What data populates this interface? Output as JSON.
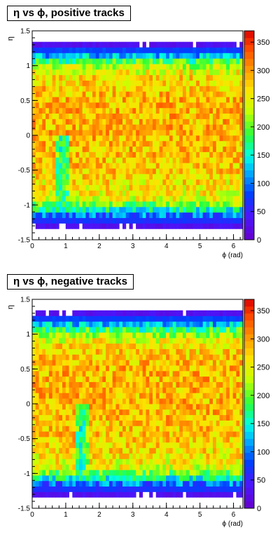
{
  "chart_data": [
    {
      "type": "heatmap",
      "title": "η vs ϕ, positive tracks",
      "xlabel": "ϕ (rad)",
      "ylabel": "η",
      "xlim": [
        0,
        6.28
      ],
      "ylim": [
        -1.5,
        1.5
      ],
      "x_ticks": [
        0,
        1,
        2,
        3,
        4,
        5,
        6
      ],
      "y_ticks": [
        -1.5,
        -1,
        -0.5,
        0,
        0.5,
        1,
        1.5
      ],
      "z_range": [
        0,
        370
      ],
      "colorbar_ticks": [
        0,
        50,
        100,
        150,
        200,
        250,
        300,
        350
      ],
      "eta_profile": [
        [
          -1.3,
          30
        ],
        [
          -1.22,
          70
        ],
        [
          -1.14,
          100
        ],
        [
          -1.06,
          160
        ],
        [
          -0.98,
          210
        ],
        [
          -0.9,
          250
        ],
        [
          -0.5,
          275
        ],
        [
          0.0,
          285
        ],
        [
          0.5,
          285
        ],
        [
          0.86,
          265
        ],
        [
          0.94,
          240
        ],
        [
          1.02,
          210
        ],
        [
          1.1,
          160
        ],
        [
          1.18,
          100
        ],
        [
          1.26,
          60
        ],
        [
          1.3,
          30
        ]
      ],
      "dead_region": {
        "phi": [
          0.7,
          1.1
        ],
        "eta": [
          -1.0,
          0.0
        ],
        "value": 160
      },
      "fiducial_eta": [
        -1.34,
        1.34
      ]
    },
    {
      "type": "heatmap",
      "title": "η vs ϕ, negative tracks",
      "xlabel": "ϕ (rad)",
      "ylabel": "η",
      "xlim": [
        0,
        6.28
      ],
      "ylim": [
        -1.5,
        1.5
      ],
      "x_ticks": [
        0,
        1,
        2,
        3,
        4,
        5,
        6
      ],
      "y_ticks": [
        -1.5,
        -1,
        -0.5,
        0,
        0.5,
        1,
        1.5
      ],
      "z_range": [
        0,
        370
      ],
      "colorbar_ticks": [
        0,
        50,
        100,
        150,
        200,
        250,
        300,
        350
      ],
      "eta_profile": [
        [
          -1.3,
          30
        ],
        [
          -1.22,
          70
        ],
        [
          -1.14,
          100
        ],
        [
          -1.06,
          160
        ],
        [
          -0.98,
          210
        ],
        [
          -0.9,
          250
        ],
        [
          -0.5,
          275
        ],
        [
          0.0,
          285
        ],
        [
          0.5,
          285
        ],
        [
          0.86,
          265
        ],
        [
          0.94,
          240
        ],
        [
          1.02,
          210
        ],
        [
          1.1,
          160
        ],
        [
          1.18,
          100
        ],
        [
          1.26,
          60
        ],
        [
          1.3,
          30
        ]
      ],
      "dead_region": {
        "phi": [
          1.25,
          1.65
        ],
        "eta": [
          -1.0,
          0.0
        ],
        "value": 160
      },
      "fiducial_eta": [
        -1.34,
        1.34
      ]
    }
  ]
}
